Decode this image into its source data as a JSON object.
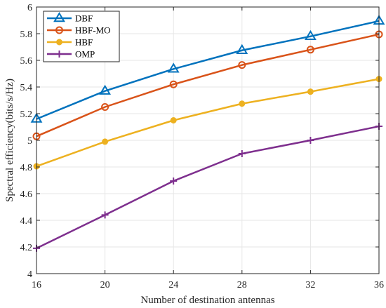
{
  "chart_data": {
    "type": "line",
    "title": "",
    "xlabel": "Number of destination antennas",
    "ylabel": "Spectral efficiency(bits/s/Hz)",
    "xlim": [
      16,
      36
    ],
    "ylim": [
      4,
      6
    ],
    "xticks": [
      16,
      20,
      24,
      28,
      32,
      36
    ],
    "yticks": [
      4,
      4.2,
      4.4,
      4.6,
      4.8,
      5,
      5.2,
      5.4,
      5.6,
      5.8,
      6
    ],
    "xtick_labels": [
      "16",
      "20",
      "24",
      "28",
      "32",
      "36"
    ],
    "ytick_labels": [
      "4",
      "4.2",
      "4.4",
      "4.6",
      "4.8",
      "5",
      "5.2",
      "5.4",
      "5.6",
      "5.8",
      "6"
    ],
    "grid": true,
    "legend_position": "top-left",
    "x": [
      16,
      20,
      24,
      28,
      32,
      36
    ],
    "series": [
      {
        "name": "DBF",
        "color": "#0072BD",
        "marker": "triangle",
        "values": [
          5.16,
          5.37,
          5.535,
          5.675,
          5.78,
          5.895
        ]
      },
      {
        "name": "HBF-MO",
        "color": "#D95319",
        "marker": "circle",
        "values": [
          5.03,
          5.25,
          5.42,
          5.565,
          5.68,
          5.795
        ]
      },
      {
        "name": "HBF",
        "color": "#EDB120",
        "marker": "dot",
        "values": [
          4.805,
          4.99,
          5.15,
          5.275,
          5.365,
          5.46
        ]
      },
      {
        "name": "OMP",
        "color": "#7E2F8E",
        "marker": "plus",
        "values": [
          4.19,
          4.44,
          4.695,
          4.9,
          5.0,
          5.105
        ]
      }
    ]
  }
}
